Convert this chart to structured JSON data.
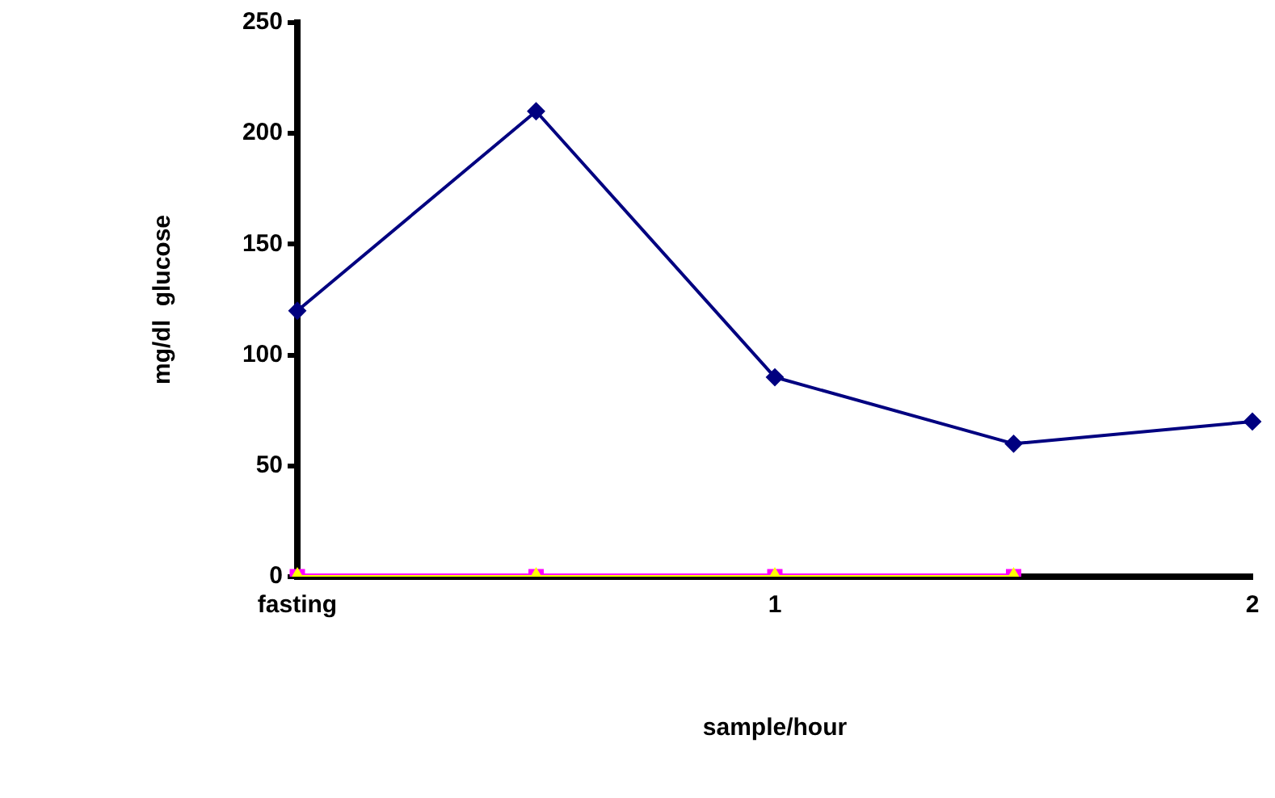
{
  "chart_data": {
    "type": "line",
    "xlabel": "sample/hour",
    "ylabel": "mg/dl  glucose",
    "categories": [
      "fasting",
      null,
      "1",
      null,
      "2"
    ],
    "series": [
      {
        "color": "#000080",
        "marker": "diamond",
        "values": [
          120,
          210,
          90,
          60,
          70
        ]
      },
      {
        "color": "#ff00ff",
        "marker": "square",
        "values": [
          0,
          0,
          0,
          0,
          null
        ]
      },
      {
        "color": "#ffff00",
        "marker": "triangle",
        "values": [
          0,
          0,
          0,
          0,
          null
        ]
      }
    ],
    "ylim": [
      0,
      250
    ],
    "yticks": [
      0,
      50,
      100,
      150,
      200,
      250
    ],
    "grid": false,
    "legend": false
  }
}
